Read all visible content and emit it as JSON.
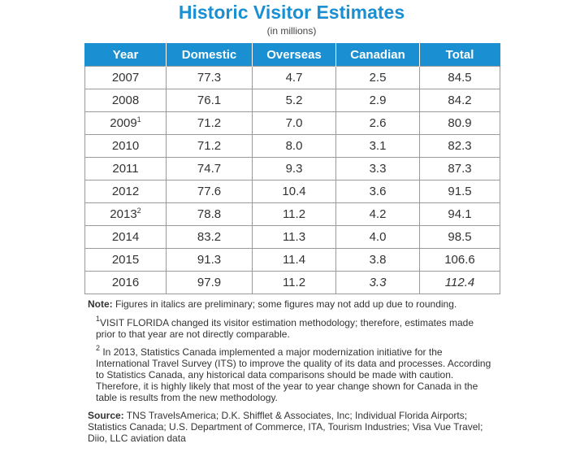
{
  "title": "Historic Visitor Estimates",
  "subtitle": "(in millions)",
  "table": {
    "headers": [
      "Year",
      "Domestic",
      "Overseas",
      "Canadian",
      "Total"
    ],
    "rows": [
      {
        "year": "2007",
        "fn": "",
        "domestic": "77.3",
        "overseas": "4.7",
        "canadian": "2.5",
        "total": "84.5"
      },
      {
        "year": "2008",
        "fn": "",
        "domestic": "76.1",
        "overseas": "5.2",
        "canadian": "2.9",
        "total": "84.2"
      },
      {
        "year": "2009",
        "fn": "1",
        "domestic": "71.2",
        "overseas": "7.0",
        "canadian": "2.6",
        "total": "80.9"
      },
      {
        "year": "2010",
        "fn": "",
        "domestic": "71.2",
        "overseas": "8.0",
        "canadian": "3.1",
        "total": "82.3"
      },
      {
        "year": "2011",
        "fn": "",
        "domestic": "74.7",
        "overseas": "9.3",
        "canadian": "3.3",
        "total": "87.3"
      },
      {
        "year": "2012",
        "fn": "",
        "domestic": "77.6",
        "overseas": "10.4",
        "canadian": "3.6",
        "total": "91.5"
      },
      {
        "year": "2013",
        "fn": "2",
        "domestic": "78.8",
        "overseas": "11.2",
        "canadian": "4.2",
        "total": "94.1"
      },
      {
        "year": "2014",
        "fn": "",
        "domestic": "83.2",
        "overseas": "11.3",
        "canadian": "4.0",
        "total": "98.5"
      },
      {
        "year": "2015",
        "fn": "",
        "domestic": "91.3",
        "overseas": "11.4",
        "canadian": "3.8",
        "total": "106.6"
      },
      {
        "year": "2016",
        "fn": "",
        "domestic": "97.9",
        "overseas": "11.2",
        "canadian": "3.3",
        "total": "112.4"
      }
    ]
  },
  "notes": {
    "note_label": "Note:",
    "note_text": " Figures in italics are preliminary; some figures may not add up due to rounding.",
    "footnote1_mark": "1",
    "footnote1_text": "VISIT FLORIDA changed its visitor estimation methodology; therefore, estimates made prior to that year are not directly comparable.",
    "footnote2_mark": "2",
    "footnote2_text": " In 2013, Statistics Canada implemented a major modernization initiative for the International Travel Survey (ITS) to improve the quality of its data and processes. According to Statistics Canada, any historical data comparisons should be made with caution. Therefore, it is highly likely that most of the year to year change shown for Canada in the table is results from the new methodology.",
    "source_label": "Source:",
    "source_text": " TNS TravelsAmerica; D.K. Shifflet & Associates, Inc; Individual Florida Airports; Statistics Canada; U.S. Department of Commerce, ITA, Tourism Industries; Visa Vue Travel; Diio, LLC aviation data"
  },
  "colors": {
    "accent": "#1a8fd1",
    "border": "#9a9a9a",
    "text": "#333333"
  }
}
